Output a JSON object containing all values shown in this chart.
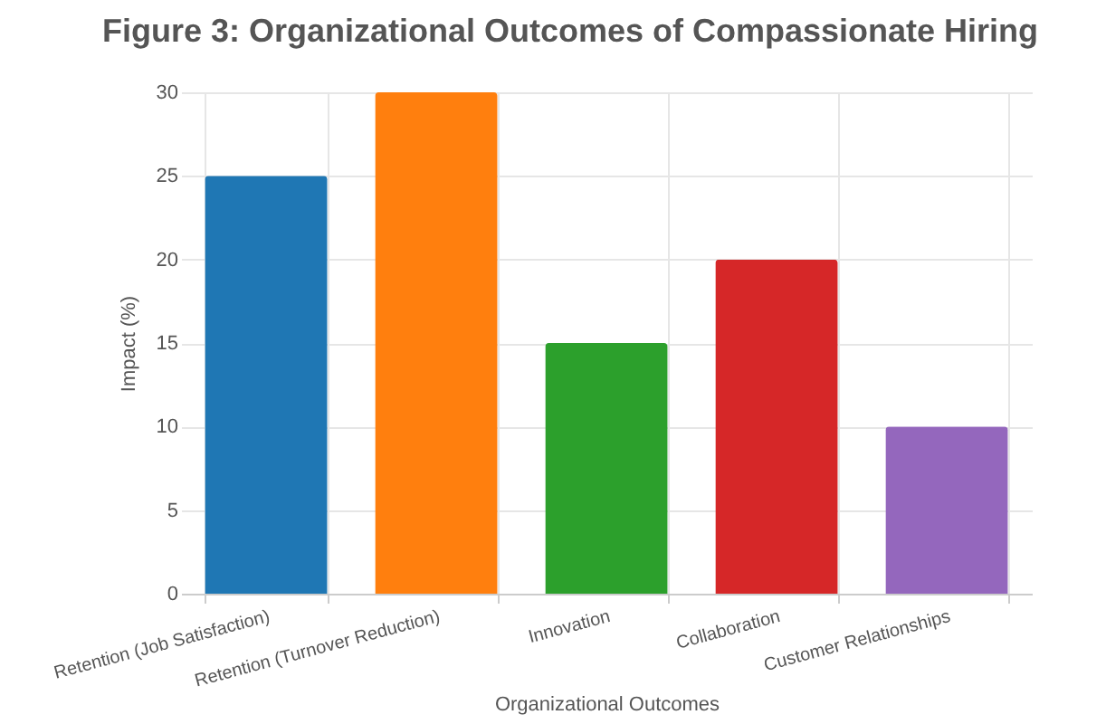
{
  "chart_data": {
    "type": "bar",
    "title": "Figure 3: Organizational Outcomes of Compassionate Hiring",
    "xlabel": "Organizational Outcomes",
    "ylabel": "Impact (%)",
    "categories": [
      "Retention (Job Satisfaction)",
      "Retention (Turnover Reduction)",
      "Innovation",
      "Collaboration",
      "Customer Relationships"
    ],
    "values": [
      25,
      30,
      15,
      20,
      10
    ],
    "colors": [
      "#1f77b4",
      "#ff7f0e",
      "#2ca02c",
      "#d62728",
      "#9467bd"
    ],
    "ylim": [
      0,
      30
    ],
    "yticks": [
      0,
      5,
      10,
      15,
      20,
      25,
      30
    ],
    "grid": true,
    "legend": false
  }
}
